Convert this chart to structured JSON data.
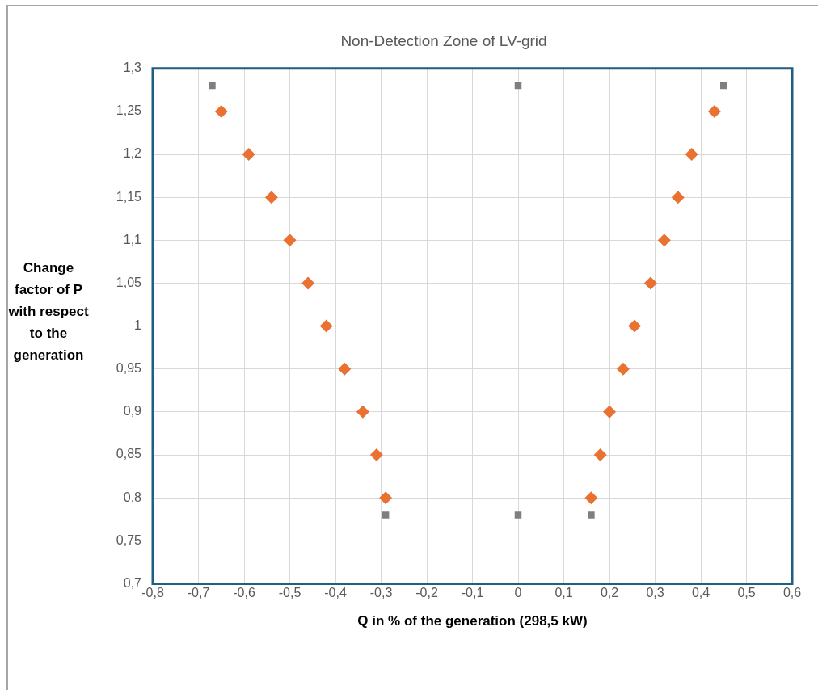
{
  "chart_data": {
    "type": "scatter",
    "title": "Non-Detection Zone of LV-grid",
    "xlabel": "Q in % of the generation (298,5 kW)",
    "ylabel": "Change factor of P with respect to the generation",
    "series": [
      {
        "color": "#e97132",
        "marker": "diamond",
        "x": [
          -0.65,
          -0.59,
          -0.54,
          -0.5,
          -0.46,
          -0.42,
          -0.38,
          -0.34,
          -0.31,
          -0.29,
          0.43,
          0.38,
          0.35,
          0.32,
          0.29,
          0.255,
          0.23,
          0.2,
          0.18,
          0.16
        ],
        "values": [
          1.25,
          1.2,
          1.15,
          1.1,
          1.05,
          1,
          0.95,
          0.9,
          0.85,
          0.8,
          1.25,
          1.2,
          1.15,
          1.1,
          1.05,
          1,
          0.95,
          0.9,
          0.85,
          0.8
        ]
      },
      {
        "color": "#7f7f7f",
        "marker": "square",
        "x": [
          -0.67,
          0,
          0.45,
          -0.29,
          0,
          0.16
        ],
        "values": [
          1.28,
          1.28,
          1.28,
          0.78,
          0.78,
          0.78
        ]
      }
    ],
    "xlim": [
      -0.8,
      0.6
    ],
    "xticks": [
      {
        "value": -0.8,
        "label": "-0,8"
      },
      {
        "value": -0.7,
        "label": "-0,7"
      },
      {
        "value": -0.6,
        "label": "-0,6"
      },
      {
        "value": -0.5,
        "label": "-0,5"
      },
      {
        "value": -0.4,
        "label": "-0,4"
      },
      {
        "value": -0.3,
        "label": "-0,3"
      },
      {
        "value": -0.2,
        "label": "-0,2"
      },
      {
        "value": -0.1,
        "label": "-0,1"
      },
      0,
      {
        "value": 0.1,
        "label": "0,1"
      },
      {
        "value": 0.2,
        "label": "0,2"
      },
      {
        "value": 0.3,
        "label": "0,3"
      },
      {
        "value": 0.4,
        "label": "0,4"
      },
      {
        "value": 0.5,
        "label": "0,5"
      },
      {
        "value": 0.6,
        "label": "0,6"
      }
    ],
    "ylim": [
      0.7,
      1.3
    ],
    "yticks": [
      {
        "value": 0.7,
        "label": "0,7"
      },
      {
        "value": 0.75,
        "label": "0,75"
      },
      {
        "value": 0.8,
        "label": "0,8"
      },
      {
        "value": 0.85,
        "label": "0,85"
      },
      {
        "value": 0.9,
        "label": "0,9"
      },
      {
        "value": 0.95,
        "label": "0,95"
      },
      1,
      {
        "value": 1.05,
        "label": "1,05"
      },
      {
        "value": 1.1,
        "label": "1,1"
      },
      {
        "value": 1.15,
        "label": "1,15"
      },
      {
        "value": 1.2,
        "label": "1,2"
      },
      {
        "value": 1.25,
        "label": "1,25"
      },
      {
        "value": 1.3,
        "label": "1,3"
      }
    ],
    "grid": true,
    "legend": false
  }
}
